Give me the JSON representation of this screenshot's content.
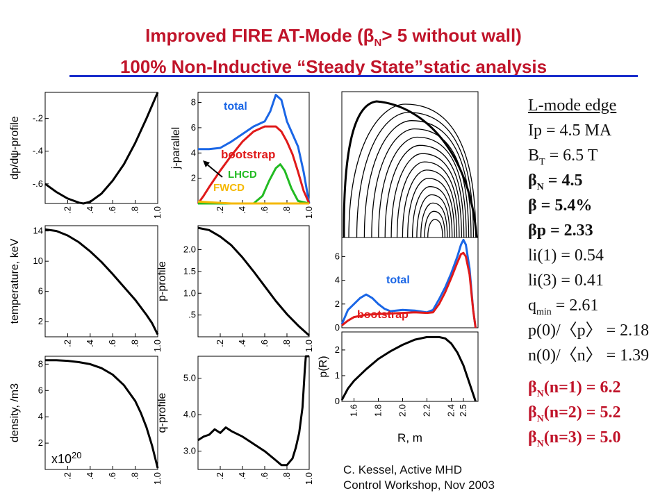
{
  "title": {
    "line1_prefix": "Improved FIRE AT-Mode (",
    "line1_beta": "β",
    "line1_sub": "N",
    "line1_suffix": "> 5 without wall)",
    "line2": "100% Non-Inductive “Steady State”static analysis"
  },
  "colors": {
    "title": "#c0142a",
    "rule": "#1a2ecc",
    "total": "#1a66e6",
    "bootstrap": "#e01a1a",
    "lhcd": "#22bb22",
    "fwcd": "#f5b800"
  },
  "params": {
    "heading": "L-mode edge",
    "ip": "Ip = 4.5 MA",
    "bt_prefix": "B",
    "bt_sub": "T",
    "bt_suffix": " = 6.5 T",
    "betan_prefix": "β",
    "betan_sub": "N",
    "betan_suffix": " = 4.5",
    "beta": "β = 5.4%",
    "betap": "βp = 2.33",
    "li1": "li(1) = 0.54",
    "li3": "li(3) = 0.41",
    "qmin_prefix": "q",
    "qmin_sub": "min",
    "qmin_suffix": " = 2.61",
    "p_ratio": "p(0)/〈p〉 = 2.18",
    "n_ratio": "n(0)/〈n〉 = 1.39",
    "bn1_prefix": "β",
    "bn1_sub": "N",
    "bn1_suffix": "(n=1) = 6.2",
    "bn2_prefix": "β",
    "bn2_sub": "N",
    "bn2_suffix": "(n=2) = 5.2",
    "bn3_prefix": "β",
    "bn3_sub": "N",
    "bn3_suffix": "(n=3) = 5.0"
  },
  "credit": {
    "line1": "C. Kessel, Active MHD",
    "line2": "Control Workshop, Nov 2003"
  },
  "chart_data": [
    {
      "type": "line",
      "id": "dpdpsi",
      "ylabel": "dp/dψ-profile",
      "xlim": [
        0,
        1.0
      ],
      "ylim": [
        -0.72,
        -0.04
      ],
      "xticks": [
        ".2",
        ".4",
        ".6",
        ".8",
        "1.0"
      ],
      "xtick_values": [
        0.2,
        0.4,
        0.6,
        0.8,
        1.0
      ],
      "yticks": [
        "-.2",
        "-.4",
        "-.6"
      ],
      "ytick_values": [
        -0.2,
        -0.4,
        -0.6
      ],
      "series": [
        {
          "color": "#000000",
          "x": [
            0,
            0.1,
            0.2,
            0.3,
            0.34,
            0.4,
            0.5,
            0.6,
            0.7,
            0.8,
            0.9,
            1.0
          ],
          "y": [
            -0.6,
            -0.65,
            -0.69,
            -0.715,
            -0.72,
            -0.71,
            -0.66,
            -0.58,
            -0.48,
            -0.35,
            -0.2,
            -0.04
          ]
        }
      ]
    },
    {
      "type": "line",
      "id": "jpar",
      "ylabel": "j-parallel",
      "xlim": [
        0,
        1.0
      ],
      "ylim": [
        0,
        8.8
      ],
      "xticks": [
        ".2",
        ".4",
        ".6",
        ".8",
        "1.0"
      ],
      "xtick_values": [
        0.2,
        0.4,
        0.6,
        0.8,
        1.0
      ],
      "yticks": [
        "2",
        "4",
        "6",
        "8"
      ],
      "ytick_values": [
        2,
        4,
        6,
        8
      ],
      "series": [
        {
          "name": "total",
          "color": "#1a66e6",
          "x": [
            0,
            0.1,
            0.2,
            0.3,
            0.4,
            0.5,
            0.6,
            0.65,
            0.7,
            0.75,
            0.8,
            0.85,
            0.9,
            0.95,
            1.0
          ],
          "y": [
            4.3,
            4.3,
            4.4,
            4.9,
            5.5,
            6.1,
            6.5,
            7.3,
            8.6,
            8.2,
            6.5,
            5.5,
            4.5,
            2.5,
            0
          ]
        },
        {
          "name": "bootstrap",
          "color": "#e01a1a",
          "x": [
            0,
            0.05,
            0.1,
            0.2,
            0.3,
            0.4,
            0.5,
            0.6,
            0.7,
            0.75,
            0.8,
            0.85,
            0.9,
            0.95,
            1.0
          ],
          "y": [
            0,
            0.6,
            1.3,
            2.6,
            3.8,
            4.9,
            5.7,
            6.1,
            6.1,
            5.7,
            4.9,
            3.9,
            2.5,
            1.0,
            0
          ]
        },
        {
          "name": "LHCD",
          "color": "#22bb22",
          "x": [
            0,
            0.5,
            0.58,
            0.64,
            0.7,
            0.74,
            0.78,
            0.84,
            0.9,
            1.0
          ],
          "y": [
            0,
            0,
            0.6,
            1.8,
            2.8,
            3.1,
            2.6,
            1.2,
            0.2,
            0
          ]
        },
        {
          "name": "FWCD",
          "color": "#f5b800",
          "x": [
            0,
            0.1,
            0.2,
            0.3,
            1.0
          ],
          "y": [
            0.15,
            0.1,
            0.05,
            0,
            0
          ]
        }
      ],
      "labels": [
        "total",
        "bootstrap",
        "LHCD",
        "FWCD"
      ]
    },
    {
      "type": "line",
      "id": "temp",
      "ylabel": "temperature, keV",
      "xlim": [
        0,
        1.0
      ],
      "ylim": [
        0,
        14.7
      ],
      "xticks": [
        ".2",
        ".4",
        ".6",
        ".8",
        "1.0"
      ],
      "xtick_values": [
        0.2,
        0.4,
        0.6,
        0.8,
        1.0
      ],
      "yticks": [
        "2",
        "6",
        "10",
        "14"
      ],
      "ytick_values": [
        2,
        6,
        10,
        14
      ],
      "series": [
        {
          "color": "#000000",
          "x": [
            0,
            0.1,
            0.2,
            0.3,
            0.4,
            0.5,
            0.6,
            0.7,
            0.8,
            0.9,
            0.95,
            1.0
          ],
          "y": [
            14.2,
            14.0,
            13.4,
            12.5,
            11.3,
            9.9,
            8.3,
            6.6,
            4.9,
            2.9,
            1.8,
            0.3
          ]
        }
      ]
    },
    {
      "type": "line",
      "id": "pprof",
      "ylabel": "p-profile",
      "xlim": [
        0,
        1.0
      ],
      "ylim": [
        0,
        2.55
      ],
      "xticks": [
        ".2",
        ".4",
        ".6",
        ".8",
        "1.0"
      ],
      "xtick_values": [
        0.2,
        0.4,
        0.6,
        0.8,
        1.0
      ],
      "yticks": [
        ".5",
        "1.0",
        "1.5",
        "2.0"
      ],
      "ytick_values": [
        0.5,
        1.0,
        1.5,
        2.0
      ],
      "series": [
        {
          "color": "#000000",
          "x": [
            0,
            0.1,
            0.2,
            0.3,
            0.4,
            0.5,
            0.6,
            0.7,
            0.8,
            0.9,
            1.0
          ],
          "y": [
            2.5,
            2.45,
            2.3,
            2.1,
            1.82,
            1.5,
            1.16,
            0.82,
            0.52,
            0.26,
            0.03
          ]
        }
      ]
    },
    {
      "type": "line",
      "id": "density",
      "ylabel": "density, /m3",
      "annotation": "x10",
      "annotation_exp": "20",
      "xlim": [
        0,
        1.0
      ],
      "ylim": [
        0,
        8.6
      ],
      "xticks": [
        ".2",
        ".4",
        ".6",
        ".8",
        "1.0"
      ],
      "xtick_values": [
        0.2,
        0.4,
        0.6,
        0.8,
        1.0
      ],
      "yticks": [
        "2",
        "4",
        "6",
        "8"
      ],
      "ytick_values": [
        2,
        4,
        6,
        8
      ],
      "series": [
        {
          "color": "#000000",
          "x": [
            0,
            0.1,
            0.2,
            0.3,
            0.4,
            0.5,
            0.6,
            0.7,
            0.8,
            0.85,
            0.9,
            0.95,
            1.0
          ],
          "y": [
            8.3,
            8.3,
            8.25,
            8.15,
            8.0,
            7.7,
            7.2,
            6.4,
            5.2,
            4.3,
            3.2,
            1.8,
            0.1
          ]
        }
      ]
    },
    {
      "type": "line",
      "id": "qprof",
      "ylabel": "q-profile",
      "xlim": [
        0,
        1.0
      ],
      "ylim": [
        2.5,
        5.6
      ],
      "xticks": [
        ".2",
        ".4",
        ".6",
        ".8",
        "1.0"
      ],
      "xtick_values": [
        0.2,
        0.4,
        0.6,
        0.8,
        1.0
      ],
      "yticks": [
        "3.0",
        "4.0",
        "5.0"
      ],
      "ytick_values": [
        3.0,
        4.0,
        5.0
      ],
      "series": [
        {
          "color": "#000000",
          "x": [
            0,
            0.05,
            0.1,
            0.15,
            0.2,
            0.25,
            0.3,
            0.4,
            0.5,
            0.6,
            0.7,
            0.75,
            0.8,
            0.85,
            0.88,
            0.91,
            0.94,
            0.96,
            0.97,
            1.0
          ],
          "y": [
            3.3,
            3.4,
            3.45,
            3.6,
            3.5,
            3.65,
            3.55,
            3.4,
            3.2,
            3.0,
            2.75,
            2.62,
            2.62,
            2.8,
            3.1,
            3.5,
            4.2,
            5.2,
            5.6,
            5.6
          ]
        }
      ]
    },
    {
      "type": "line",
      "id": "jR",
      "xlim": [
        1.5,
        2.62
      ],
      "ylim": [
        0,
        7.6
      ],
      "yticks": [
        "0",
        "2",
        "4",
        "6"
      ],
      "ytick_values": [
        0,
        2,
        4,
        6
      ],
      "series": [
        {
          "name": "total",
          "color": "#1a66e6",
          "x": [
            1.5,
            1.55,
            1.6,
            1.65,
            1.7,
            1.75,
            1.8,
            1.85,
            1.9,
            2.0,
            2.1,
            2.2,
            2.25,
            2.3,
            2.35,
            2.4,
            2.45,
            2.48,
            2.5,
            2.52,
            2.55,
            2.58,
            2.6
          ],
          "y": [
            0.3,
            1.5,
            2.0,
            2.5,
            2.8,
            2.5,
            2.0,
            1.6,
            1.4,
            1.5,
            1.45,
            1.3,
            1.5,
            2.4,
            3.4,
            4.6,
            6.0,
            7.0,
            7.4,
            7.0,
            5.0,
            1.5,
            0
          ]
        },
        {
          "name": "bootstrap",
          "color": "#e01a1a",
          "x": [
            1.5,
            1.55,
            1.6,
            1.7,
            1.8,
            1.9,
            2.0,
            2.1,
            2.2,
            2.25,
            2.3,
            2.35,
            2.4,
            2.45,
            2.48,
            2.5,
            2.52,
            2.55,
            2.58,
            2.6
          ],
          "y": [
            0.2,
            0.6,
            0.9,
            1.1,
            1.15,
            1.2,
            1.25,
            1.3,
            1.25,
            1.3,
            2.0,
            3.0,
            4.2,
            5.5,
            6.2,
            6.3,
            6.0,
            4.5,
            1.5,
            0
          ]
        }
      ],
      "labels": [
        "total",
        "bootstrap"
      ]
    },
    {
      "type": "line",
      "id": "pR",
      "ylabel": "p(R)",
      "xlabel": "R, m",
      "xlim": [
        1.5,
        2.62
      ],
      "ylim": [
        0,
        2.7
      ],
      "xticks": [
        "1.6",
        "1.8",
        "2.0",
        "2.2",
        "2.4",
        "2.5"
      ],
      "xtick_values": [
        1.6,
        1.8,
        2.0,
        2.2,
        2.4,
        2.5
      ],
      "yticks": [
        "0",
        "1",
        "2"
      ],
      "ytick_values": [
        0,
        1,
        2
      ],
      "series": [
        {
          "color": "#000000",
          "x": [
            1.5,
            1.55,
            1.6,
            1.7,
            1.8,
            1.9,
            2.0,
            2.1,
            2.2,
            2.3,
            2.35,
            2.4,
            2.45,
            2.5,
            2.55,
            2.6
          ],
          "y": [
            0.05,
            0.5,
            0.8,
            1.25,
            1.65,
            1.95,
            2.2,
            2.4,
            2.5,
            2.5,
            2.45,
            2.25,
            1.9,
            1.4,
            0.7,
            0
          ]
        }
      ]
    }
  ]
}
